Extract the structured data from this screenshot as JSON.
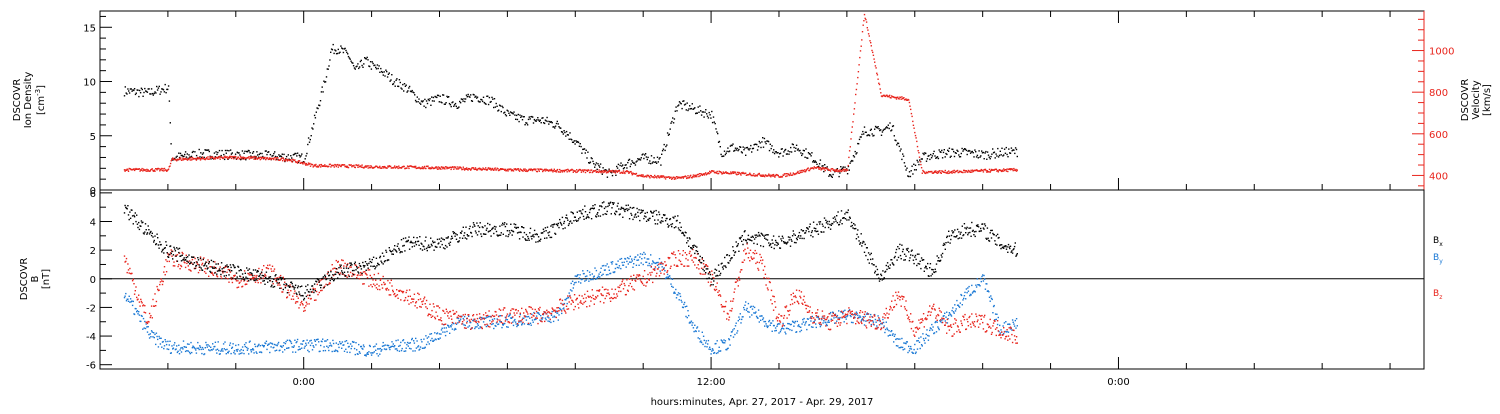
{
  "chart_data": [
    {
      "type": "scatter",
      "panel": "top",
      "left_axis": {
        "label_lines": [
          "DSCOVR",
          "Ion Density"
        ],
        "unit_prefix": "[cm",
        "unit_sup": "-3",
        "unit_suffix": "]",
        "ylim": [
          0,
          16.5
        ],
        "ticks": [
          "0",
          "5",
          "10",
          "15"
        ],
        "tick_values": [
          0,
          5,
          10,
          15
        ],
        "color": "#000000"
      },
      "right_axis": {
        "label_lines": [
          "DSCOVR",
          "Velocity",
          "[km/s]"
        ],
        "ylim": [
          330,
          1190
        ],
        "ticks": [
          "400",
          "600",
          "800",
          "1000"
        ],
        "tick_values": [
          400,
          600,
          800,
          1000
        ],
        "color": "#e8241c"
      },
      "series": [
        {
          "color": "#000000",
          "axis": "left",
          "x": [
            -5.3,
            -4.6,
            -4.0,
            -3.9,
            -3.0,
            -2.0,
            -1.0,
            0.0,
            0.6,
            0.8,
            1.0,
            1.3,
            1.5,
            1.8,
            2.0,
            2.3,
            2.7,
            3.0,
            3.5,
            4.0,
            4.5,
            5.0,
            5.5,
            6.0,
            6.5,
            7.0,
            7.5,
            8.0,
            8.5,
            9.0,
            9.5,
            10.0,
            10.5,
            11.0,
            11.5,
            12.0,
            12.3,
            12.6,
            13.0,
            13.5,
            14.0,
            14.5,
            15.0,
            15.5,
            16.0,
            16.5,
            17.0,
            17.3,
            17.8,
            18.2,
            18.5,
            19.0,
            19.5,
            20.0,
            20.5,
            21.0
          ],
          "y": [
            9.2,
            9.0,
            9.5,
            3.0,
            3.4,
            3.3,
            3.2,
            3.0,
            10.0,
            13.0,
            13.1,
            12.5,
            11.0,
            12.0,
            11.5,
            11.0,
            10.0,
            9.5,
            8.0,
            8.5,
            8.0,
            8.7,
            8.3,
            7.0,
            6.5,
            6.5,
            6.0,
            4.5,
            2.5,
            1.5,
            2.5,
            3.0,
            2.8,
            8.0,
            7.5,
            7.0,
            3.5,
            4.0,
            3.5,
            4.5,
            3.5,
            4.0,
            3.0,
            1.5,
            2.0,
            5.5,
            5.5,
            6.0,
            1.5,
            3.0,
            3.3,
            3.5,
            3.5,
            3.3,
            3.5,
            3.6
          ]
        },
        {
          "color": "#e8241c",
          "axis": "right",
          "x": [
            -5.3,
            -4.0,
            -3.9,
            -2.0,
            -0.5,
            0.3,
            0.8,
            2.0,
            4.0,
            6.0,
            8.0,
            9.5,
            10.0,
            11.0,
            11.5,
            12.0,
            13.0,
            14.0,
            14.5,
            15.0,
            15.5,
            16.0,
            16.5,
            17.0,
            17.3,
            17.8,
            18.2,
            19.0,
            20.0,
            21.0
          ],
          "y": [
            430,
            430,
            480,
            490,
            480,
            450,
            450,
            445,
            440,
            430,
            425,
            420,
            400,
            390,
            400,
            420,
            410,
            400,
            415,
            440,
            430,
            425,
            1180,
            790,
            780,
            770,
            420,
            420,
            425,
            430
          ]
        }
      ]
    },
    {
      "type": "scatter",
      "panel": "bottom",
      "left_axis": {
        "label_lines": [
          "DSCOVR",
          "B"
        ],
        "unit": "[nT]",
        "ylim": [
          -6.3,
          6.2
        ],
        "ticks": [
          "-6",
          "-4",
          "-2",
          "0",
          "2",
          "4",
          "6"
        ],
        "tick_values": [
          -6,
          -4,
          -2,
          0,
          2,
          4,
          6
        ]
      },
      "zero_line": 0,
      "series": [
        {
          "name": "B",
          "subscript": "x",
          "color": "#000000",
          "x": [
            -5.3,
            -4.5,
            -4.0,
            -3.0,
            -2.0,
            -1.0,
            0.0,
            1.0,
            2.0,
            3.0,
            4.0,
            5.0,
            6.0,
            7.0,
            8.0,
            9.0,
            10.0,
            11.0,
            12.0,
            13.0,
            14.0,
            15.0,
            16.0,
            17.0,
            17.5,
            18.0,
            18.5,
            19.0,
            19.5,
            20.0,
            20.5,
            21.0
          ],
          "y": [
            5.0,
            3.0,
            2.0,
            1.0,
            0.5,
            0.0,
            -1.0,
            0.5,
            1.0,
            2.5,
            2.5,
            3.5,
            3.5,
            3.0,
            4.5,
            5.0,
            4.5,
            4.0,
            0.0,
            3.0,
            2.5,
            3.5,
            4.5,
            0.0,
            2.0,
            1.5,
            0.5,
            3.0,
            3.5,
            3.5,
            2.5,
            2.0
          ]
        },
        {
          "name": "B",
          "subscript": "y",
          "color": "#1a78d4",
          "x": [
            -5.3,
            -4.5,
            -4.0,
            -3.0,
            -2.0,
            -1.0,
            0.0,
            1.0,
            2.0,
            2.5,
            3.5,
            4.5,
            5.5,
            6.5,
            7.5,
            8.0,
            9.0,
            10.0,
            10.5,
            11.0,
            11.5,
            12.0,
            12.5,
            13.0,
            14.0,
            15.0,
            16.0,
            17.0,
            17.5,
            18.0,
            18.5,
            19.0,
            19.5,
            20.0,
            20.5,
            21.0
          ],
          "y": [
            -1.0,
            -4.0,
            -4.7,
            -4.8,
            -4.8,
            -4.7,
            -4.6,
            -4.6,
            -5.0,
            -4.7,
            -4.5,
            -3.0,
            -3.0,
            -2.8,
            -2.5,
            0.0,
            0.8,
            1.5,
            1.0,
            -1.0,
            -3.5,
            -4.8,
            -4.5,
            -2.0,
            -3.5,
            -3.0,
            -2.5,
            -3.0,
            -4.5,
            -4.8,
            -3.5,
            -2.5,
            -1.0,
            0.0,
            -3.5,
            -3.0
          ]
        },
        {
          "name": "B",
          "subscript": "z",
          "color": "#e8241c",
          "x": [
            -5.3,
            -4.6,
            -4.0,
            -3.0,
            -2.0,
            -1.0,
            0.0,
            1.0,
            2.0,
            3.0,
            4.0,
            5.0,
            6.0,
            7.0,
            8.0,
            9.0,
            10.0,
            11.0,
            11.5,
            12.0,
            12.5,
            13.0,
            13.5,
            14.0,
            14.5,
            15.0,
            15.5,
            16.0,
            17.0,
            17.5,
            18.0,
            18.5,
            19.0,
            19.5,
            20.0,
            20.5,
            21.0
          ],
          "y": [
            1.5,
            -3.0,
            1.5,
            1.0,
            0.0,
            0.5,
            -2.0,
            1.0,
            0.0,
            -1.0,
            -2.5,
            -3.0,
            -2.5,
            -2.5,
            -1.5,
            -1.0,
            0.0,
            1.5,
            1.5,
            0.0,
            -2.5,
            2.0,
            1.0,
            -3.0,
            -1.0,
            -2.5,
            -3.0,
            -2.5,
            -3.0,
            -1.0,
            -3.5,
            -2.0,
            -3.5,
            -3.0,
            -3.0,
            -3.5,
            -4.0
          ]
        }
      ]
    }
  ],
  "x_axis": {
    "xlim": [
      -6,
      33
    ],
    "ticks": [
      "0:00",
      "12:00",
      "0:00"
    ],
    "tick_values": [
      0,
      12,
      24
    ],
    "minor_step": 2,
    "label": "hours:minutes, Apr. 27, 2017 - Apr. 29, 2017"
  },
  "colors": {
    "black": "#000000",
    "red": "#e8241c",
    "blue": "#1a78d4"
  }
}
